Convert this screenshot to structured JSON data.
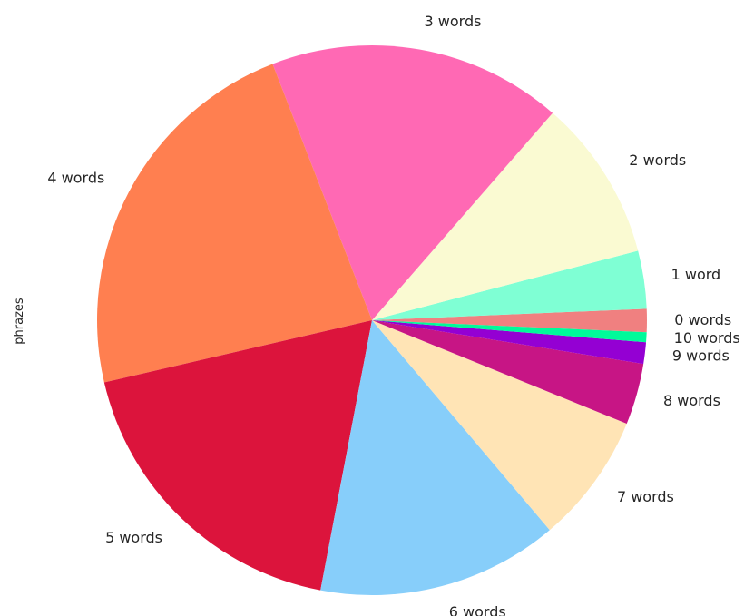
{
  "chart_data": {
    "type": "pie",
    "ylabel": "phrazes",
    "start_angle_deg": -2.5,
    "direction": "counterclockwise",
    "slices": [
      {
        "label": "0 words",
        "value": 1.4,
        "color": "#f08080"
      },
      {
        "label": "1 word",
        "value": 3.5,
        "color": "#7fffd4"
      },
      {
        "label": "2 words",
        "value": 9.8,
        "color": "#fafad2"
      },
      {
        "label": "3 words",
        "value": 17.8,
        "color": "#ff69b4"
      },
      {
        "label": "4 words",
        "value": 23.4,
        "color": "#ff7f50"
      },
      {
        "label": "5 words",
        "value": 18.9,
        "color": "#dc143c"
      },
      {
        "label": "6 words",
        "value": 14.6,
        "color": "#87cefa"
      },
      {
        "label": "7 words",
        "value": 7.9,
        "color": "#ffe4b5"
      },
      {
        "label": "8 words",
        "value": 3.7,
        "color": "#c71585"
      },
      {
        "label": "9 words",
        "value": 1.3,
        "color": "#9400d3"
      },
      {
        "label": "10 words",
        "value": 0.6,
        "color": "#00fa9a"
      }
    ]
  }
}
